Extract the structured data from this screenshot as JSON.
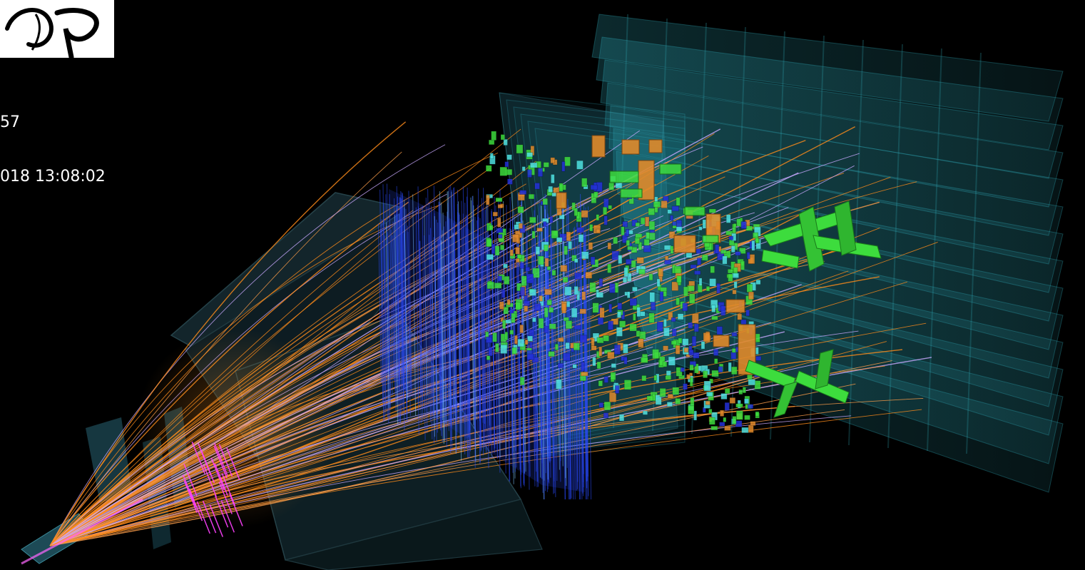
{
  "event_info": {
    "run_fragment": "57",
    "timestamp_fragment": "018 13:08:02"
  },
  "colors": {
    "background": "#000000",
    "track": "#ff8c1a",
    "vertex_detector": "#ff40ff",
    "tracker_hits": "#2a4bff",
    "calorimeter_green": "#3ddc3d",
    "calorimeter_orange": "#e0892a",
    "calorimeter_blue": "#2330d8",
    "muon_chambers": "#2fa6b5",
    "detector_frame": "#1f3f46"
  },
  "logo": {
    "icon": "experiment-logo-icon"
  }
}
